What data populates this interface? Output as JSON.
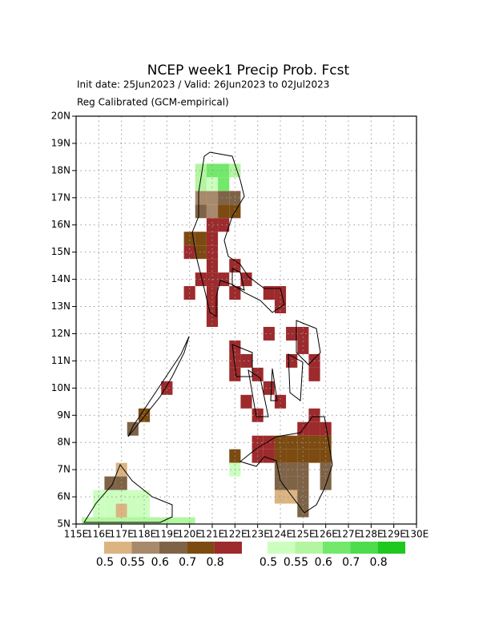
{
  "chart_data": {
    "type": "gridmap",
    "title": "NCEP week1 Precip Prob. Fcst",
    "subtitle": [
      "Init date: 25Jun2023 / Valid: 26Jun2023 to 02Jul2023",
      "Reg Calibrated (GCM-empirical)"
    ],
    "xlim": [
      115,
      130
    ],
    "ylim": [
      5,
      20
    ],
    "xticks": [
      {
        "value": 115,
        "label": "115E"
      },
      {
        "value": 116,
        "label": "116E"
      },
      {
        "value": 117,
        "label": "117E"
      },
      {
        "value": 118,
        "label": "118E"
      },
      {
        "value": 119,
        "label": "119E"
      },
      {
        "value": 120,
        "label": "120E"
      },
      {
        "value": 121,
        "label": "121E"
      },
      {
        "value": 122,
        "label": "122E"
      },
      {
        "value": 123,
        "label": "123E"
      },
      {
        "value": 124,
        "label": "124E"
      },
      {
        "value": 125,
        "label": "125E"
      },
      {
        "value": 126,
        "label": "126E"
      },
      {
        "value": 127,
        "label": "127E"
      },
      {
        "value": 128,
        "label": "128E"
      },
      {
        "value": 129,
        "label": "129E"
      },
      {
        "value": 130,
        "label": "130E"
      }
    ],
    "yticks": [
      {
        "value": 5,
        "label": "5N"
      },
      {
        "value": 6,
        "label": "6N"
      },
      {
        "value": 7,
        "label": "7N"
      },
      {
        "value": 8,
        "label": "8N"
      },
      {
        "value": 9,
        "label": "9N"
      },
      {
        "value": 10,
        "label": "10N"
      },
      {
        "value": 11,
        "label": "11N"
      },
      {
        "value": 12,
        "label": "12N"
      },
      {
        "value": 13,
        "label": "13N"
      },
      {
        "value": 14,
        "label": "14N"
      },
      {
        "value": 15,
        "label": "15N"
      },
      {
        "value": 16,
        "label": "16N"
      },
      {
        "value": 17,
        "label": "17N"
      },
      {
        "value": 18,
        "label": "18N"
      },
      {
        "value": 19,
        "label": "19N"
      },
      {
        "value": 20,
        "label": "20N"
      }
    ],
    "grid": true,
    "cell_size": 0.5,
    "dry_scale": {
      "levels": [
        0.5,
        0.55,
        0.6,
        0.7,
        0.8
      ],
      "colors": [
        "#dcb482",
        "#a8896b",
        "#7f6347",
        "#7c4b11",
        "#9d2a2c"
      ]
    },
    "wet_scale": {
      "levels": [
        0.5,
        0.55,
        0.6,
        0.7,
        0.8
      ],
      "colors": [
        "#ccffbf",
        "#b3f5a0",
        "#73e86b",
        "#4cdc4c",
        "#1ec81e"
      ]
    },
    "dry_cells": [
      [
        120.5,
        17,
        0.55
      ],
      [
        121,
        17,
        0.55
      ],
      [
        121.5,
        17,
        0.6
      ],
      [
        122,
        17,
        0.6
      ],
      [
        120.5,
        16.5,
        0.6
      ],
      [
        121,
        16.5,
        0.55
      ],
      [
        121.5,
        16.5,
        0.7
      ],
      [
        122,
        16.5,
        0.7
      ],
      [
        121,
        16,
        0.8
      ],
      [
        121.5,
        16,
        0.8
      ],
      [
        120,
        15.5,
        0.7
      ],
      [
        120.5,
        15.5,
        0.7
      ],
      [
        121,
        15.5,
        0.8
      ],
      [
        120,
        15,
        0.8
      ],
      [
        120.5,
        15,
        0.7
      ],
      [
        121,
        15,
        0.8
      ],
      [
        121,
        14.5,
        0.8
      ],
      [
        122,
        14.5,
        0.8
      ],
      [
        120.5,
        14,
        0.8
      ],
      [
        121,
        14,
        0.8
      ],
      [
        121.5,
        14,
        0.8
      ],
      [
        122.5,
        14,
        0.8
      ],
      [
        120,
        13.5,
        0.8
      ],
      [
        121,
        13.5,
        0.8
      ],
      [
        122,
        13.5,
        0.8
      ],
      [
        123.5,
        13.5,
        0.8
      ],
      [
        124,
        13.5,
        0.8
      ],
      [
        121,
        13,
        0.8
      ],
      [
        124,
        13,
        0.8
      ],
      [
        121,
        12.5,
        0.8
      ],
      [
        123.5,
        12,
        0.8
      ],
      [
        124.5,
        12,
        0.8
      ],
      [
        125,
        12,
        0.8
      ],
      [
        122,
        11.5,
        0.8
      ],
      [
        125,
        11.5,
        0.8
      ],
      [
        122,
        11,
        0.8
      ],
      [
        122.5,
        11,
        0.8
      ],
      [
        124.5,
        11,
        0.8
      ],
      [
        125.5,
        11,
        0.8
      ],
      [
        122,
        10.5,
        0.8
      ],
      [
        123,
        10.5,
        0.8
      ],
      [
        125.5,
        10.5,
        0.8
      ],
      [
        119,
        10,
        0.8
      ],
      [
        123.5,
        10,
        0.8
      ],
      [
        122.5,
        9.5,
        0.8
      ],
      [
        124,
        9.5,
        0.8
      ],
      [
        118,
        9,
        0.7
      ],
      [
        123,
        9,
        0.8
      ],
      [
        125.5,
        9,
        0.8
      ],
      [
        117.5,
        8.5,
        0.6
      ],
      [
        125,
        8.5,
        0.8
      ],
      [
        125.5,
        8.5,
        0.8
      ],
      [
        126,
        8.5,
        0.8
      ],
      [
        123,
        8,
        0.8
      ],
      [
        123.5,
        8,
        0.8
      ],
      [
        124,
        8,
        0.7
      ],
      [
        124.5,
        8,
        0.7
      ],
      [
        125,
        8,
        0.7
      ],
      [
        125.5,
        8,
        0.7
      ],
      [
        126,
        8,
        0.7
      ],
      [
        122,
        7.5,
        0.7
      ],
      [
        123,
        7.5,
        0.8
      ],
      [
        123.5,
        7.5,
        0.8
      ],
      [
        124,
        7.5,
        0.7
      ],
      [
        124.5,
        7.5,
        0.7
      ],
      [
        125,
        7.5,
        0.7
      ],
      [
        125.5,
        7.5,
        0.7
      ],
      [
        126,
        7.5,
        0.7
      ],
      [
        117,
        7,
        0.5
      ],
      [
        124,
        7,
        0.6
      ],
      [
        124.5,
        7,
        0.6
      ],
      [
        125,
        7,
        0.6
      ],
      [
        126,
        7,
        0.6
      ],
      [
        116.5,
        6.5,
        0.6
      ],
      [
        117,
        6.5,
        0.6
      ],
      [
        124,
        6.5,
        0.6
      ],
      [
        124.5,
        6.5,
        0.6
      ],
      [
        125,
        6.5,
        0.6
      ],
      [
        126,
        6.5,
        0.6
      ],
      [
        124,
        6,
        0.5
      ],
      [
        124.5,
        6,
        0.5
      ],
      [
        125,
        6,
        0.6
      ],
      [
        117,
        5.5,
        0.5
      ],
      [
        125,
        5.5,
        0.6
      ]
    ],
    "wet_cells": [
      [
        120.5,
        18,
        0.55
      ],
      [
        121,
        18,
        0.6
      ],
      [
        121.5,
        18,
        0.6
      ],
      [
        122,
        18,
        0.55
      ],
      [
        120.5,
        17.5,
        0.55
      ],
      [
        121,
        17.5,
        0.5
      ],
      [
        121.5,
        17.5,
        0.6
      ],
      [
        122,
        7,
        0.5
      ],
      [
        116,
        6,
        0.5
      ],
      [
        116.5,
        6,
        0.5
      ],
      [
        117,
        6,
        0.5
      ],
      [
        117.5,
        6,
        0.5
      ],
      [
        118,
        6,
        0.5
      ],
      [
        116,
        5.5,
        0.5
      ],
      [
        116.5,
        5.5,
        0.5
      ],
      [
        117.5,
        5.5,
        0.5
      ],
      [
        118,
        5.5,
        0.5
      ],
      [
        115.5,
        5,
        0.55
      ],
      [
        116,
        5,
        0.55
      ],
      [
        116.5,
        5,
        0.55
      ],
      [
        117,
        5,
        0.55
      ],
      [
        117.5,
        5,
        0.55
      ],
      [
        118,
        5,
        0.55
      ],
      [
        118.5,
        5,
        0.55
      ],
      [
        119,
        5,
        0.55
      ],
      [
        119.5,
        5,
        0.55
      ],
      [
        120,
        5,
        0.55
      ]
    ]
  }
}
